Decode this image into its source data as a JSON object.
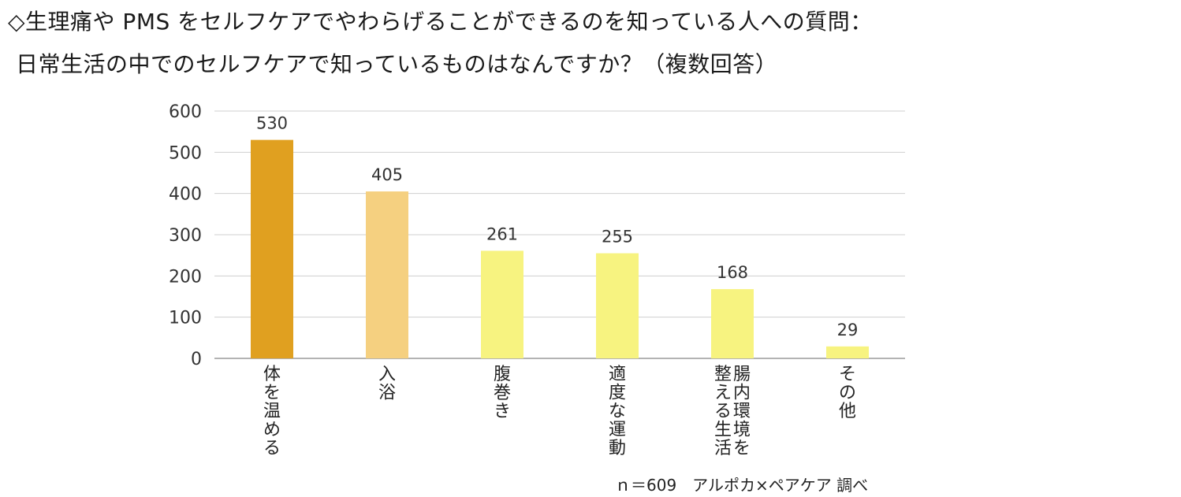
{
  "header": {
    "title_line_1": "◇生理痛や PMS をセルフケアでやわらげることができるのを知っている人への質問：",
    "title_line_2": "日常生活の中でのセルフケアで知っているものはなんですか？（複数回答）"
  },
  "footer": {
    "credit": "ｎ＝609　アルポカ×ペアケア 調べ"
  },
  "chart_data": {
    "type": "bar",
    "categories": [
      "体を温める",
      "入浴",
      "腹巻き",
      "適度な運動",
      "腸内環境を整える生活",
      "その他"
    ],
    "values": [
      530,
      405,
      261,
      255,
      168,
      29
    ],
    "bar_colors": [
      "#E0A020",
      "#F5D080",
      "#F7F380",
      "#F7F380",
      "#F7F380",
      "#F7F380"
    ],
    "ylim": [
      0,
      600
    ],
    "yticks": [
      0,
      100,
      200,
      300,
      400,
      500,
      600
    ],
    "grid": true,
    "data_labels": true,
    "xlabel": "",
    "ylabel": ""
  }
}
